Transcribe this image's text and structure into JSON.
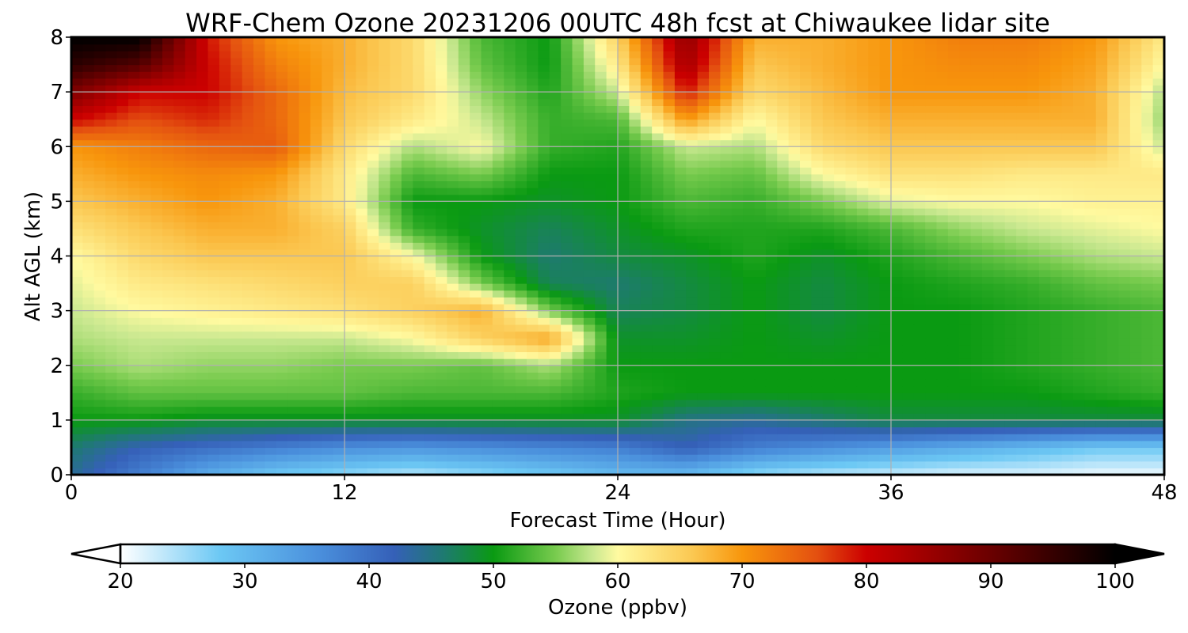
{
  "chart_data": {
    "type": "heatmap",
    "title": "WRF-Chem Ozone  20231206 00UTC 48h fcst at Chiwaukee lidar site",
    "xlabel": "Forecast Time (Hour)",
    "ylabel": "Alt AGL (km)",
    "xlim": [
      0,
      48
    ],
    "ylim": [
      0,
      8
    ],
    "x_ticks": [
      "0",
      "12",
      "24",
      "36",
      "48"
    ],
    "y_ticks": [
      "0",
      "1",
      "2",
      "3",
      "4",
      "5",
      "6",
      "7",
      "8"
    ],
    "grid": true,
    "colorbar": {
      "label": "Ozone  (ppbv)",
      "range": [
        20,
        100
      ],
      "ticks": [
        "20",
        "30",
        "40",
        "50",
        "60",
        "70",
        "80",
        "90",
        "100"
      ],
      "extend": "both",
      "under_color": "#ffffff",
      "over_color": "#000000",
      "color_stops": [
        {
          "value": 20,
          "color": "#ffffff"
        },
        {
          "value": 28,
          "color": "#6cc8f4"
        },
        {
          "value": 36,
          "color": "#4a8fdc"
        },
        {
          "value": 42,
          "color": "#3560b8"
        },
        {
          "value": 46,
          "color": "#1e7a70"
        },
        {
          "value": 50,
          "color": "#0a9a12"
        },
        {
          "value": 55,
          "color": "#78cb4e"
        },
        {
          "value": 58,
          "color": "#c9e890"
        },
        {
          "value": 60,
          "color": "#fffaa0"
        },
        {
          "value": 66,
          "color": "#fbc852"
        },
        {
          "value": 70,
          "color": "#f8960c"
        },
        {
          "value": 76,
          "color": "#e45010"
        },
        {
          "value": 80,
          "color": "#cc0000"
        },
        {
          "value": 90,
          "color": "#6a0000"
        },
        {
          "value": 100,
          "color": "#000000"
        }
      ]
    },
    "x": [
      0,
      3,
      6,
      9,
      12,
      15,
      18,
      21,
      24,
      27,
      30,
      33,
      36,
      39,
      42,
      45,
      48
    ],
    "y": [
      0,
      0.5,
      1,
      1.5,
      2,
      2.5,
      3,
      3.5,
      4,
      4.5,
      5,
      5.5,
      6,
      6.5,
      7,
      7.5,
      8
    ],
    "z": [
      [
        44,
        38,
        32,
        28,
        26,
        24,
        26,
        28,
        30,
        30,
        26,
        24,
        23,
        22,
        22,
        21,
        21
      ],
      [
        46,
        42,
        40,
        38,
        36,
        35,
        36,
        37,
        38,
        42,
        38,
        36,
        34,
        32,
        30,
        28,
        28
      ],
      [
        50,
        50,
        49,
        49,
        49,
        49,
        49,
        49,
        49,
        45,
        44,
        46,
        48,
        48,
        48,
        48,
        48
      ],
      [
        52,
        54,
        54,
        54,
        54,
        53,
        53,
        53,
        51,
        50,
        50,
        50,
        50,
        50,
        50,
        51,
        52
      ],
      [
        55,
        57,
        56,
        56,
        55,
        55,
        54,
        57,
        50,
        50,
        50,
        50,
        50,
        50,
        51,
        52,
        53
      ],
      [
        57,
        58,
        58,
        58,
        58,
        60,
        65,
        69,
        49,
        49,
        50,
        49,
        50,
        50,
        51,
        52,
        53
      ],
      [
        58,
        60,
        61,
        62,
        63,
        65,
        68,
        55,
        47,
        48,
        50,
        48,
        50,
        50,
        51,
        52,
        53
      ],
      [
        59,
        62,
        63,
        64,
        65,
        65,
        55,
        47,
        46,
        48,
        50,
        48,
        50,
        51,
        52,
        54,
        55
      ],
      [
        60,
        64,
        66,
        66,
        66,
        60,
        50,
        46,
        48,
        49,
        51,
        49,
        51,
        53,
        55,
        57,
        58
      ],
      [
        63,
        66,
        68,
        68,
        65,
        52,
        49,
        47,
        49,
        51,
        51,
        51,
        53,
        56,
        58,
        59,
        60
      ],
      [
        66,
        68,
        70,
        68,
        62,
        50,
        50,
        49,
        50,
        53,
        52,
        55,
        59,
        60,
        60,
        61,
        61
      ],
      [
        68,
        70,
        71,
        70,
        62,
        53,
        55,
        50,
        50,
        55,
        54,
        60,
        63,
        63,
        62,
        62,
        62
      ],
      [
        70,
        72,
        74,
        75,
        64,
        57,
        60,
        52,
        51,
        58,
        57,
        64,
        66,
        66,
        66,
        66,
        58
      ],
      [
        80,
        76,
        78,
        74,
        66,
        62,
        58,
        52,
        53,
        70,
        60,
        66,
        68,
        68,
        68,
        68,
        56
      ],
      [
        88,
        80,
        80,
        74,
        67,
        64,
        56,
        51,
        58,
        79,
        64,
        67,
        70,
        70,
        70,
        68,
        57
      ],
      [
        96,
        92,
        80,
        72,
        68,
        64,
        54,
        50,
        62,
        84,
        66,
        68,
        70,
        71,
        71,
        69,
        60
      ],
      [
        100,
        100,
        79,
        70,
        68,
        64,
        53,
        50,
        65,
        86,
        68,
        68,
        70,
        72,
        72,
        70,
        62
      ]
    ]
  }
}
